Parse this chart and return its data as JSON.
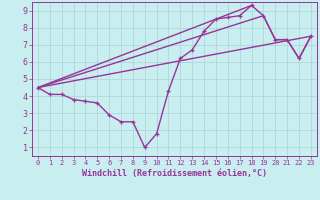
{
  "xlabel": "Windchill (Refroidissement éolien,°C)",
  "bg_color": "#c8eef0",
  "line_color": "#993399",
  "grid_color": "#b0d8dc",
  "axis_color": "#993399",
  "xlim": [
    -0.5,
    23.5
  ],
  "ylim": [
    0.5,
    9.5
  ],
  "xticks": [
    0,
    1,
    2,
    3,
    4,
    5,
    6,
    7,
    8,
    9,
    10,
    11,
    12,
    13,
    14,
    15,
    16,
    17,
    18,
    19,
    20,
    21,
    22,
    23
  ],
  "yticks": [
    1,
    2,
    3,
    4,
    5,
    6,
    7,
    8,
    9
  ],
  "line1": [
    [
      0,
      4.5
    ],
    [
      1,
      4.1
    ],
    [
      2,
      4.1
    ],
    [
      3,
      3.8
    ],
    [
      4,
      3.7
    ],
    [
      5,
      3.6
    ],
    [
      6,
      2.9
    ],
    [
      7,
      2.5
    ],
    [
      8,
      2.5
    ],
    [
      9,
      1.0
    ],
    [
      10,
      1.8
    ],
    [
      11,
      4.3
    ],
    [
      12,
      6.2
    ],
    [
      13,
      6.7
    ],
    [
      14,
      7.8
    ],
    [
      15,
      8.5
    ],
    [
      16,
      8.6
    ],
    [
      17,
      8.7
    ],
    [
      18,
      9.3
    ],
    [
      19,
      8.7
    ],
    [
      20,
      7.3
    ],
    [
      21,
      7.3
    ],
    [
      22,
      6.2
    ],
    [
      23,
      7.5
    ]
  ],
  "line2": [
    [
      0,
      4.5
    ],
    [
      23,
      7.5
    ]
  ],
  "line3": [
    [
      0,
      4.5
    ],
    [
      18,
      9.3
    ]
  ],
  "line4": [
    [
      0,
      4.5
    ],
    [
      19,
      8.7
    ],
    [
      20,
      7.3
    ],
    [
      21,
      7.3
    ],
    [
      22,
      6.2
    ],
    [
      23,
      7.5
    ]
  ]
}
